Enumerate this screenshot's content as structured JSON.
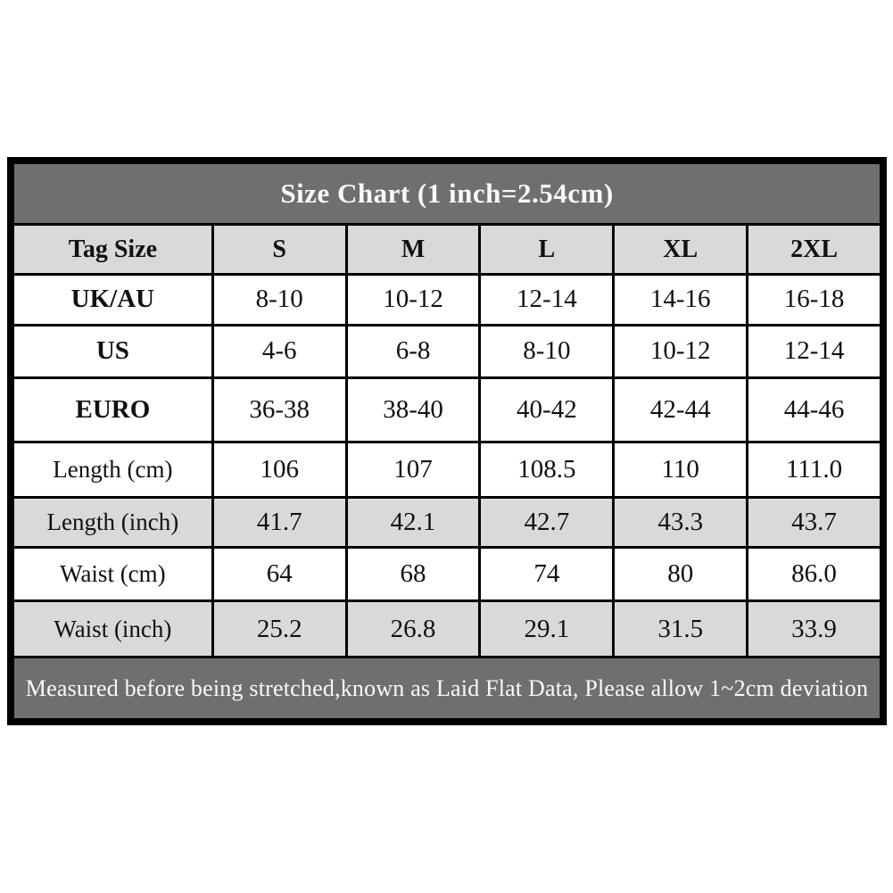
{
  "chart_data": {
    "type": "table",
    "title": "Size Chart (1 inch=2.54cm)",
    "columns": [
      "Tag Size",
      "S",
      "M",
      "L",
      "XL",
      "2XL"
    ],
    "rows": [
      {
        "label": "UK/AU",
        "bold_label": true,
        "shaded": false,
        "values": [
          "8-10",
          "10-12",
          "12-14",
          "14-16",
          "16-18"
        ]
      },
      {
        "label": "US",
        "bold_label": true,
        "shaded": false,
        "values": [
          "4-6",
          "6-8",
          "8-10",
          "10-12",
          "12-14"
        ]
      },
      {
        "label": "EURO",
        "bold_label": true,
        "shaded": false,
        "values": [
          "36-38",
          "38-40",
          "40-42",
          "42-44",
          "44-46"
        ]
      },
      {
        "label": "Length (cm)",
        "bold_label": false,
        "shaded": false,
        "values": [
          "106",
          "107",
          "108.5",
          "110",
          "111.0"
        ]
      },
      {
        "label": "Length (inch)",
        "bold_label": false,
        "shaded": true,
        "values": [
          "41.7",
          "42.1",
          "42.7",
          "43.3",
          "43.7"
        ]
      },
      {
        "label": "Waist (cm)",
        "bold_label": false,
        "shaded": false,
        "values": [
          "64",
          "68",
          "74",
          "80",
          "86.0"
        ]
      },
      {
        "label": "Waist (inch)",
        "bold_label": false,
        "shaded": true,
        "values": [
          "25.2",
          "26.8",
          "29.1",
          "31.5",
          "33.9"
        ]
      }
    ],
    "footnote": "Measured before being stretched,known as Laid Flat Data, Please allow 1~2cm deviation"
  },
  "colors": {
    "band_background": "#6f6f6f",
    "band_text": "#fafafa",
    "shaded_row": "#d9d9d9",
    "cell_background": "#ffffff",
    "border": "#000000",
    "text": "#111111"
  }
}
